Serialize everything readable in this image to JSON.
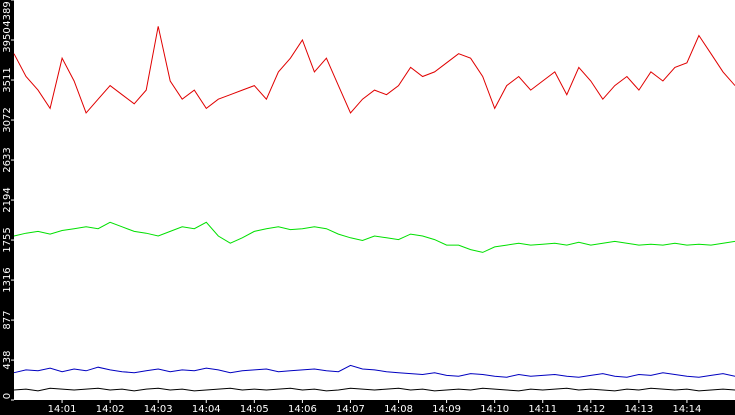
{
  "chart_data": {
    "type": "line",
    "categories": [
      null,
      null,
      null,
      null,
      "14:01",
      null,
      null,
      null,
      "14:02",
      null,
      null,
      null,
      "14:03",
      null,
      null,
      null,
      "14:04",
      null,
      null,
      null,
      "14:05",
      null,
      null,
      null,
      "14:06",
      null,
      null,
      null,
      "14:07",
      null,
      null,
      null,
      "14:08",
      null,
      null,
      null,
      "14:09",
      null,
      null,
      null,
      "14:10",
      null,
      null,
      null,
      "14:11",
      null,
      null,
      null,
      "14:12",
      null,
      null,
      null,
      "14:13",
      null,
      null,
      null,
      "14:14",
      null,
      null,
      null,
      null
    ],
    "ylim": [
      0,
      4389
    ],
    "yticks": [
      0,
      438,
      877,
      1316,
      1755,
      2194,
      2633,
      3072,
      3511,
      3950,
      4389
    ],
    "series": [
      {
        "color": "#e00000",
        "values": [
          3800,
          3550,
          3400,
          3200,
          3750,
          3500,
          3150,
          3300,
          3450,
          3350,
          3250,
          3400,
          4100,
          3500,
          3300,
          3400,
          3200,
          3300,
          3350,
          3400,
          3450,
          3300,
          3600,
          3750,
          3950,
          3600,
          3750,
          3450,
          3150,
          3300,
          3400,
          3350,
          3450,
          3650,
          3550,
          3600,
          3700,
          3800,
          3750,
          3550,
          3200,
          3450,
          3550,
          3400,
          3500,
          3600,
          3350,
          3650,
          3500,
          3300,
          3450,
          3550,
          3400,
          3600,
          3500,
          3650,
          3700,
          4000,
          3800,
          3600,
          3450
        ]
      },
      {
        "color": "#00e000",
        "values": [
          1800,
          1830,
          1850,
          1820,
          1860,
          1880,
          1900,
          1880,
          1950,
          1900,
          1850,
          1830,
          1800,
          1850,
          1900,
          1880,
          1950,
          1800,
          1720,
          1780,
          1850,
          1880,
          1900,
          1870,
          1880,
          1900,
          1880,
          1820,
          1780,
          1750,
          1800,
          1780,
          1760,
          1820,
          1800,
          1760,
          1700,
          1700,
          1650,
          1620,
          1680,
          1700,
          1720,
          1700,
          1710,
          1720,
          1700,
          1730,
          1700,
          1720,
          1740,
          1720,
          1700,
          1710,
          1700,
          1720,
          1700,
          1710,
          1700,
          1720,
          1740
        ]
      },
      {
        "color": "#0000c0",
        "values": [
          300,
          330,
          320,
          350,
          310,
          340,
          320,
          360,
          330,
          310,
          300,
          320,
          340,
          310,
          330,
          320,
          350,
          330,
          300,
          320,
          330,
          340,
          310,
          320,
          330,
          340,
          320,
          310,
          380,
          340,
          330,
          310,
          300,
          290,
          280,
          300,
          270,
          260,
          290,
          280,
          260,
          250,
          280,
          260,
          270,
          280,
          260,
          250,
          270,
          290,
          260,
          250,
          280,
          270,
          300,
          280,
          260,
          250,
          270,
          290,
          260
        ]
      },
      {
        "color": "#000000",
        "values": [
          110,
          120,
          100,
          130,
          120,
          110,
          120,
          130,
          110,
          120,
          100,
          120,
          130,
          110,
          120,
          100,
          110,
          120,
          130,
          110,
          120,
          110,
          120,
          130,
          110,
          120,
          100,
          110,
          130,
          120,
          110,
          120,
          130,
          110,
          120,
          100,
          110,
          120,
          110,
          130,
          120,
          110,
          100,
          120,
          110,
          120,
          130,
          110,
          120,
          110,
          100,
          120,
          110,
          130,
          120,
          110,
          120,
          100,
          110,
          120,
          110
        ]
      }
    ]
  }
}
